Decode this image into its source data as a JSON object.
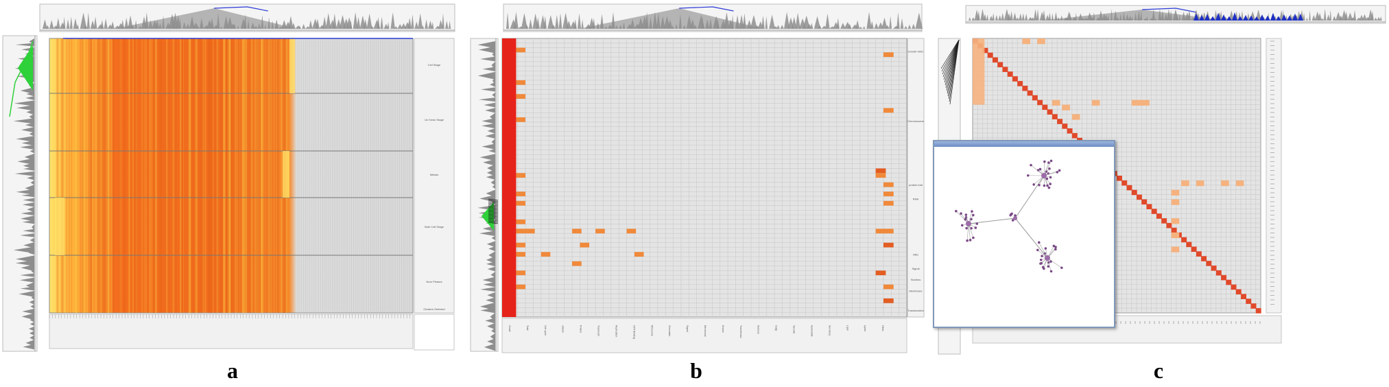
{
  "panels": [
    {
      "id": "a",
      "caption": "a",
      "view": "heatmap",
      "row_labels": [
        "Cell Stage",
        "Un Knwn Stage",
        "Mitosis",
        "Both Cell Stage",
        "Num Phases"
      ],
      "footer_label": "Clusters Selected"
    },
    {
      "id": "b",
      "caption": "b",
      "view": "annotation-matrix",
      "row_labels": [
        "Growth 4001",
        "Chromosome",
        "protein fold",
        "RNA",
        "Mito",
        "Signal",
        "Nucleus",
        "Membrane",
        "Translocation"
      ],
      "column_labels": [
        "Count",
        "Total",
        "Cell cycle",
        "mitosis",
        "Protein",
        "Transcript",
        "Replication",
        "GTP Binding",
        "Ribosome",
        "Chromatin",
        "Signal",
        "Membrane",
        "Kinase",
        "Transferase",
        "Nucleus",
        "Golgi",
        "Vacuole",
        "Nucleotide",
        "Secretory",
        "Lipid",
        "Lyase",
        "Other"
      ]
    },
    {
      "id": "c",
      "caption": "c",
      "view": "correlation-matrix",
      "popup": "network-graph"
    }
  ],
  "colors": {
    "grid": "#c9c9c9",
    "cell_bg": "#e4e4e4",
    "red": "#e5231b",
    "orange": "#f0893a",
    "light_orange": "#f5b27f",
    "yellow": "#ffd84a",
    "green": "#2fd13a",
    "blue": "#2b3bd6",
    "tree_gray": "#8e8e8e"
  }
}
